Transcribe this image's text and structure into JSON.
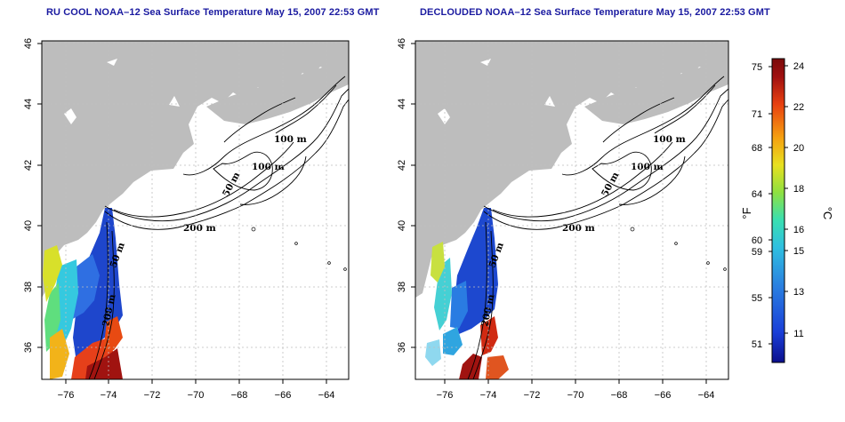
{
  "panels": [
    {
      "title": "RU COOL NOAA–12 Sea Surface Temperature May 15, 2007 22:53 GMT",
      "contour_labels": [
        "100 m",
        "100 m",
        "50 m",
        "200 m",
        "50 m",
        "200 m"
      ]
    },
    {
      "title": "DECLOUDED NOAA–12 Sea Surface Temperature May 15, 2007 22:53 GMT",
      "contour_labels": [
        "100 m",
        "100 m",
        "50 m",
        "200 m",
        "50 m",
        "200 m"
      ]
    }
  ],
  "x_ticks": [
    "−76",
    "−74",
    "−72",
    "−70",
    "−68",
    "−66",
    "−64"
  ],
  "y_ticks": [
    "36",
    "38",
    "40",
    "42",
    "44",
    "46"
  ],
  "colorbar": {
    "fahrenheit_ticks": [
      "75",
      "71",
      "68",
      "64",
      "60",
      "59",
      "55",
      "51"
    ],
    "celsius_ticks": [
      "24",
      "22",
      "20",
      "18",
      "16",
      "15",
      "13",
      "11"
    ],
    "fahrenheit_unit": "°F",
    "celsius_unit": "°C",
    "colors": [
      "#0b0f8c",
      "#1a3fd8",
      "#2a7fe0",
      "#2fc0e0",
      "#3adfb0",
      "#8fe040",
      "#e8e020",
      "#f5a010",
      "#e84010",
      "#a01010",
      "#7a0a0a"
    ]
  },
  "colors": {
    "land": "#bdbdbd",
    "title": "#1a1aa0",
    "grid": "#bfbfbf"
  }
}
